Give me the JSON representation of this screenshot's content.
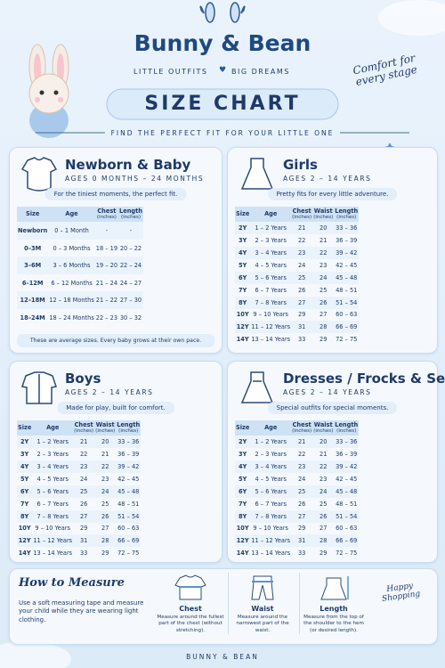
{
  "header": {
    "brand": "Bunny & Bean",
    "tagline": [
      "LITTLE OUTFITS",
      "BIG DREAMS"
    ],
    "title": "SIZE CHART",
    "subtitle": "FIND THE PERFECT FIT FOR YOUR LITTLE ONE",
    "badge": "Comfort for every stage"
  },
  "sections": [
    {
      "title": "Newborn & Baby",
      "ages": "AGES 0 MONTHS – 24 MONTHS",
      "note": "For the tiniest moments, the perfect fit.",
      "columns": [
        {
          "name": "Size"
        },
        {
          "name": "Age"
        },
        {
          "name": "Chest",
          "unit": "(inches)"
        },
        {
          "name": "Length",
          "unit": "(inches)"
        }
      ],
      "rows": [
        [
          "Newborn",
          "0 – 1 Month",
          "-",
          "-"
        ],
        [
          "0–3M",
          "0 – 3 Months",
          "18 – 19",
          "20 – 22"
        ],
        [
          "3–6M",
          "3 – 6 Months",
          "19 – 20",
          "22 – 24"
        ],
        [
          "6–12M",
          "6 – 12 Months",
          "21 – 24",
          "24 – 27"
        ],
        [
          "12–18M",
          "12 – 18 Months",
          "21 – 22",
          "27 – 30"
        ],
        [
          "18–24M",
          "18 – 24 Months",
          "22 – 23",
          "30 – 32"
        ]
      ],
      "footnote": "These are average sizes. Every baby grows at their own pace."
    },
    {
      "title": "Girls",
      "ages": "AGES 2 – 14 YEARS",
      "note": "Pretty fits for every little adventure.",
      "columns": [
        {
          "name": "Size"
        },
        {
          "name": "Age"
        },
        {
          "name": "Chest",
          "unit": "(inches)"
        },
        {
          "name": "Waist",
          "unit": "(inches)"
        },
        {
          "name": "Length",
          "unit": "(inches)"
        }
      ],
      "rows": [
        [
          "2Y",
          "1 – 2 Years",
          "21",
          "20",
          "33 – 36"
        ],
        [
          "3Y",
          "2 – 3 Years",
          "22",
          "21",
          "36 – 39"
        ],
        [
          "4Y",
          "3 – 4 Years",
          "23",
          "22",
          "39 – 42"
        ],
        [
          "5Y",
          "4 – 5 Years",
          "24",
          "23",
          "42 – 45"
        ],
        [
          "6Y",
          "5 – 6 Years",
          "25",
          "24",
          "45 – 48"
        ],
        [
          "7Y",
          "6 – 7 Years",
          "26",
          "25",
          "48 – 51"
        ],
        [
          "8Y",
          "7 – 8 Years",
          "27",
          "26",
          "51 – 54"
        ],
        [
          "10Y",
          "9 – 10 Years",
          "29",
          "27",
          "60 – 63"
        ],
        [
          "12Y",
          "11 – 12 Years",
          "31",
          "28",
          "66 – 69"
        ],
        [
          "14Y",
          "13 – 14 Years",
          "33",
          "29",
          "72 – 75"
        ]
      ]
    },
    {
      "title": "Boys",
      "ages": "AGES 2 – 14 YEARS",
      "note": "Made for play, built for comfort.",
      "columns": [
        {
          "name": "Size"
        },
        {
          "name": "Age"
        },
        {
          "name": "Chest",
          "unit": "(inches)"
        },
        {
          "name": "Waist",
          "unit": "(inches)"
        },
        {
          "name": "Length",
          "unit": "(inches)"
        }
      ],
      "rows": [
        [
          "2Y",
          "1 – 2 Years",
          "21",
          "20",
          "33 – 36"
        ],
        [
          "3Y",
          "2 – 3 Years",
          "22",
          "21",
          "36 – 39"
        ],
        [
          "4Y",
          "3 – 4 Years",
          "23",
          "22",
          "39 – 42"
        ],
        [
          "5Y",
          "4 – 5 Years",
          "24",
          "23",
          "42 – 45"
        ],
        [
          "6Y",
          "5 – 6 Years",
          "25",
          "24",
          "45 – 48"
        ],
        [
          "7Y",
          "6 – 7 Years",
          "26",
          "25",
          "48 – 51"
        ],
        [
          "8Y",
          "7 – 8 Years",
          "27",
          "26",
          "51 – 54"
        ],
        [
          "10Y",
          "9 – 10 Years",
          "29",
          "27",
          "60 – 63"
        ],
        [
          "12Y",
          "11 – 12 Years",
          "31",
          "28",
          "66 – 69"
        ],
        [
          "14Y",
          "13 – 14 Years",
          "33",
          "29",
          "72 – 75"
        ]
      ]
    },
    {
      "title": "Dresses / Frocks & Sets",
      "ages": "AGES 2 – 14 YEARS",
      "note": "Special outfits for special moments.",
      "columns": [
        {
          "name": "Size"
        },
        {
          "name": "Age"
        },
        {
          "name": "Chest",
          "unit": "(inches)"
        },
        {
          "name": "Waist",
          "unit": "(inches)"
        },
        {
          "name": "Length",
          "unit": "(inches)"
        }
      ],
      "rows": [
        [
          "2Y",
          "1 – 2 Years",
          "21",
          "20",
          "33 – 36"
        ],
        [
          "3Y",
          "2 – 3 Years",
          "22",
          "21",
          "36 – 39"
        ],
        [
          "4Y",
          "3 – 4 Years",
          "23",
          "22",
          "39 – 42"
        ],
        [
          "5Y",
          "4 – 5 Years",
          "24",
          "23",
          "42 – 45"
        ],
        [
          "6Y",
          "5 – 6 Years",
          "25",
          "24",
          "45 – 48"
        ],
        [
          "7Y",
          "6 – 7 Years",
          "26",
          "25",
          "48 – 51"
        ],
        [
          "8Y",
          "7 – 8 Years",
          "27",
          "26",
          "51 – 54"
        ],
        [
          "10Y",
          "9 – 10 Years",
          "29",
          "27",
          "60 – 63"
        ],
        [
          "12Y",
          "11 – 12 Years",
          "31",
          "28",
          "66 – 69"
        ],
        [
          "14Y",
          "13 – 14 Years",
          "33",
          "29",
          "72 – 75"
        ]
      ]
    }
  ],
  "measure": {
    "title": "How to Measure",
    "text": "Use a soft measuring tape and measure your child while they are wearing light clothing.",
    "items": [
      {
        "name": "Chest",
        "desc": "Measure around the fullest part of the chest (without stretching)."
      },
      {
        "name": "Waist",
        "desc": "Measure around the narrowest part of the waist."
      },
      {
        "name": "Length",
        "desc": "Measure from the top of the shoulder to the hem (or desired length)."
      }
    ],
    "badge": "Happy Shopping"
  },
  "footer": "BUNNY & BEAN"
}
